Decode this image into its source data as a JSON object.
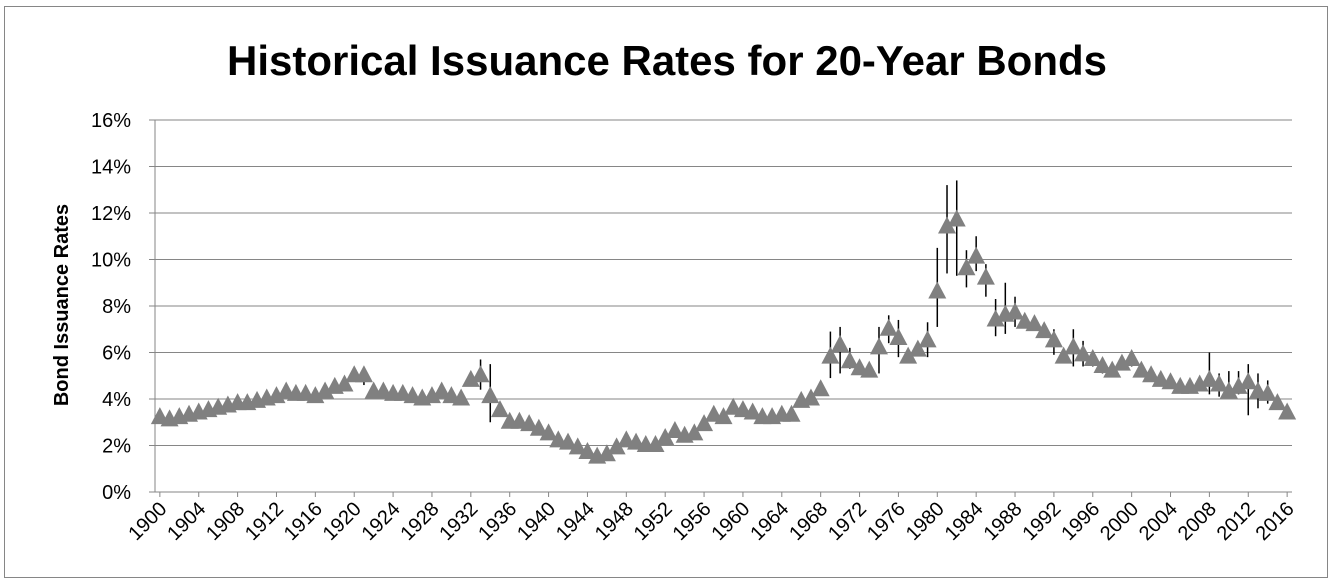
{
  "chart_data": {
    "type": "scatter",
    "title": "Historical Issuance Rates for 20-Year Bonds",
    "xlabel": "",
    "ylabel": "Bond Issuance Rates",
    "ylim": [
      0,
      16
    ],
    "yticks": [
      "0%",
      "2%",
      "4%",
      "6%",
      "8%",
      "10%",
      "12%",
      "14%",
      "16%"
    ],
    "xticks": [
      "1900",
      "1904",
      "1908",
      "1912",
      "1916",
      "1920",
      "1924",
      "1928",
      "1932",
      "1936",
      "1940",
      "1944",
      "1948",
      "1952",
      "1956",
      "1960",
      "1964",
      "1968",
      "1972",
      "1976",
      "1980",
      "1984",
      "1988",
      "1992",
      "1996",
      "2000",
      "2004",
      "2008",
      "2012",
      "2016"
    ],
    "xlim": [
      1900,
      2016
    ],
    "grid": true,
    "marker": "triangle",
    "marker_color": "#808080",
    "errorbar_color": "#000000",
    "series": [
      {
        "x": [
          1900,
          1901,
          1902,
          1903,
          1904,
          1905,
          1906,
          1907,
          1908,
          1909,
          1910,
          1911,
          1912,
          1913,
          1914,
          1915,
          1916,
          1917,
          1918,
          1919,
          1920,
          1921,
          1922,
          1923,
          1924,
          1925,
          1926,
          1927,
          1928,
          1929,
          1930,
          1931,
          1932,
          1933,
          1934,
          1935,
          1936,
          1937,
          1938,
          1939,
          1940,
          1941,
          1942,
          1943,
          1944,
          1945,
          1946,
          1947,
          1948,
          1949,
          1950,
          1951,
          1952,
          1953,
          1954,
          1955,
          1956,
          1957,
          1958,
          1959,
          1960,
          1961,
          1962,
          1963,
          1964,
          1965,
          1966,
          1967,
          1968,
          1969,
          1970,
          1971,
          1972,
          1973,
          1974,
          1975,
          1976,
          1977,
          1978,
          1979,
          1980,
          1981,
          1982,
          1983,
          1984,
          1985,
          1986,
          1987,
          1988,
          1989,
          1990,
          1991,
          1992,
          1993,
          1994,
          1995,
          1996,
          1997,
          1998,
          1999,
          2000,
          2001,
          2002,
          2003,
          2004,
          2005,
          2006,
          2007,
          2008,
          2009,
          2010,
          2011,
          2012,
          2013,
          2014,
          2015,
          2016
        ],
        "values": [
          3.2,
          3.1,
          3.2,
          3.3,
          3.4,
          3.5,
          3.6,
          3.7,
          3.8,
          3.8,
          3.9,
          4.0,
          4.1,
          4.3,
          4.2,
          4.2,
          4.1,
          4.3,
          4.5,
          4.6,
          5.0,
          5.0,
          4.3,
          4.3,
          4.2,
          4.2,
          4.1,
          4.0,
          4.1,
          4.3,
          4.1,
          4.0,
          4.8,
          5.0,
          4.1,
          3.5,
          3.0,
          3.0,
          2.9,
          2.7,
          2.5,
          2.2,
          2.1,
          1.9,
          1.7,
          1.5,
          1.6,
          1.9,
          2.2,
          2.1,
          2.0,
          2.0,
          2.3,
          2.6,
          2.4,
          2.5,
          2.9,
          3.3,
          3.2,
          3.6,
          3.5,
          3.4,
          3.2,
          3.2,
          3.3,
          3.3,
          3.9,
          4.0,
          4.4,
          5.8,
          6.3,
          5.6,
          5.3,
          5.2,
          6.2,
          7.0,
          6.6,
          5.8,
          6.1,
          6.5,
          8.6,
          11.4,
          11.7,
          9.6,
          10.1,
          9.2,
          7.4,
          7.6,
          7.7,
          7.3,
          7.2,
          6.9,
          6.5,
          5.8,
          6.2,
          5.9,
          5.7,
          5.4,
          5.2,
          5.5,
          5.7,
          5.2,
          5.0,
          4.8,
          4.7,
          4.5,
          4.5,
          4.6,
          4.8,
          4.6,
          4.3,
          4.5,
          4.7,
          4.3,
          4.2,
          3.8,
          3.4
        ],
        "err_low": [
          0,
          0,
          0,
          0,
          0,
          0,
          0,
          0,
          0,
          0,
          0,
          0,
          0,
          0,
          0,
          0,
          0,
          0,
          0,
          0,
          0,
          0.4,
          0,
          0,
          0,
          0,
          0,
          0,
          0,
          0,
          0,
          0,
          0,
          0.6,
          1.1,
          0,
          0,
          0,
          0,
          0,
          0,
          0,
          0,
          0,
          0,
          0,
          0,
          0,
          0,
          0,
          0,
          0,
          0,
          0,
          0,
          0,
          0,
          0,
          0,
          0,
          0,
          0,
          0,
          0,
          0,
          0,
          0,
          0,
          0,
          0.9,
          1.2,
          0.3,
          0,
          0,
          1.1,
          0.6,
          0.8,
          0,
          0,
          0.7,
          1.5,
          2.0,
          2.4,
          0.8,
          0.6,
          0.8,
          0.7,
          0.8,
          0.6,
          0,
          0,
          0,
          0.6,
          0.1,
          0.8,
          0.5,
          0.3,
          0.3,
          0,
          0,
          0.3,
          0,
          0,
          0,
          0,
          0,
          0,
          0,
          0.6,
          0.5,
          0.2,
          0.3,
          1.4,
          0.7,
          0.4,
          0,
          0
        ],
        "err_high": [
          0,
          0,
          0,
          0,
          0,
          0,
          0,
          0,
          0,
          0,
          0,
          0,
          0,
          0,
          0,
          0,
          0,
          0,
          0,
          0,
          0,
          0,
          0,
          0,
          0,
          0,
          0,
          0,
          0,
          0,
          0,
          0,
          0,
          0.7,
          1.4,
          0,
          0,
          0,
          0,
          0,
          0,
          0,
          0,
          0,
          0,
          0,
          0,
          0,
          0,
          0,
          0,
          0,
          0,
          0,
          0,
          0,
          0,
          0,
          0,
          0,
          0,
          0,
          0,
          0,
          0,
          0,
          0,
          0,
          0,
          1.1,
          0.8,
          0.6,
          0,
          0,
          0.9,
          0.6,
          0.8,
          0,
          0,
          0.8,
          1.9,
          1.8,
          1.7,
          0.8,
          0.9,
          0.6,
          0.9,
          1.4,
          0.7,
          0,
          0,
          0,
          0.5,
          0.1,
          0.8,
          0.6,
          0.3,
          0.3,
          0,
          0,
          0.3,
          0,
          0,
          0,
          0,
          0,
          0,
          0,
          1.2,
          0.5,
          0.9,
          0.7,
          0.8,
          0.8,
          0.6,
          0,
          0
        ]
      }
    ]
  }
}
